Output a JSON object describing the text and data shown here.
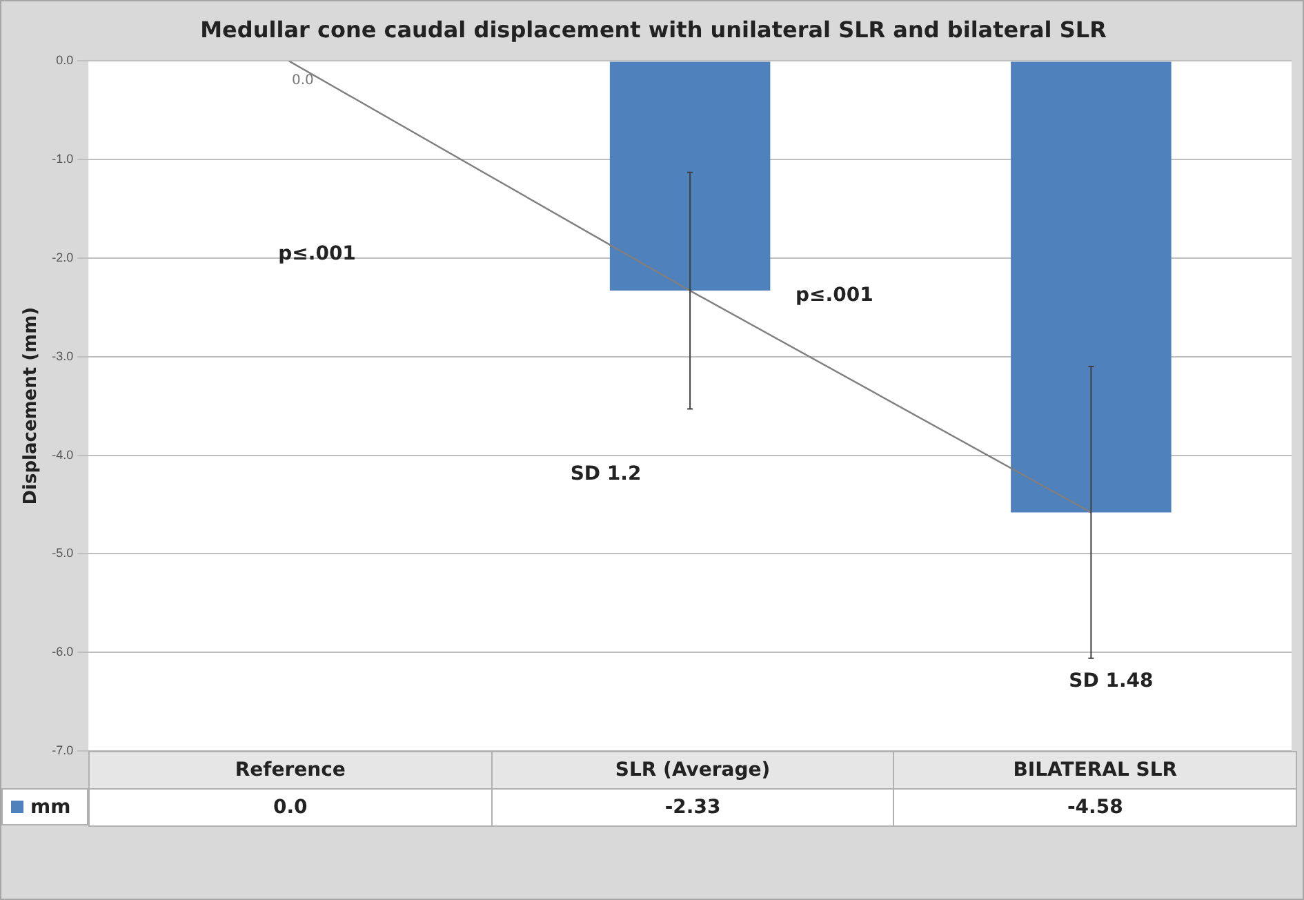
{
  "chart_data": {
    "type": "bar",
    "title": "Medullar cone caudal displacement with unilateral SLR and bilateral SLR",
    "ylabel": "Displacement (mm)",
    "categories": [
      "Reference",
      "SLR (Average)",
      "BILATERAL SLR"
    ],
    "series": [
      {
        "name": "mm",
        "color": "#4f81bd",
        "values": [
          0,
          -2.33,
          -4.58
        ],
        "errors": [
          null,
          1.2,
          1.48
        ],
        "value_labels": [
          "0.0",
          "-2.33",
          "-4.58"
        ]
      },
      {
        "type": "line",
        "color": "#7f7f7f",
        "values": [
          0,
          -2.33,
          -4.58
        ]
      }
    ],
    "ylim": [
      -7,
      0
    ],
    "yticks": [
      {
        "value": 0,
        "label": "0.0"
      },
      {
        "value": -1,
        "label": "-1.0"
      },
      {
        "value": -2,
        "label": "-2.0"
      },
      {
        "value": -3,
        "label": "-3.0"
      },
      {
        "value": -4,
        "label": "-4.0"
      },
      {
        "value": -5,
        "label": "-5.0"
      },
      {
        "value": -6,
        "label": "-6.0"
      },
      {
        "value": -7,
        "label": "-7.0"
      }
    ],
    "grid": "y",
    "marker": "none",
    "annotations": [
      {
        "text": "0.0",
        "x": "Reference",
        "y": 0
      },
      "p≤.001",
      "p≤.001",
      "SD 1.2",
      "SD 1.48"
    ]
  }
}
